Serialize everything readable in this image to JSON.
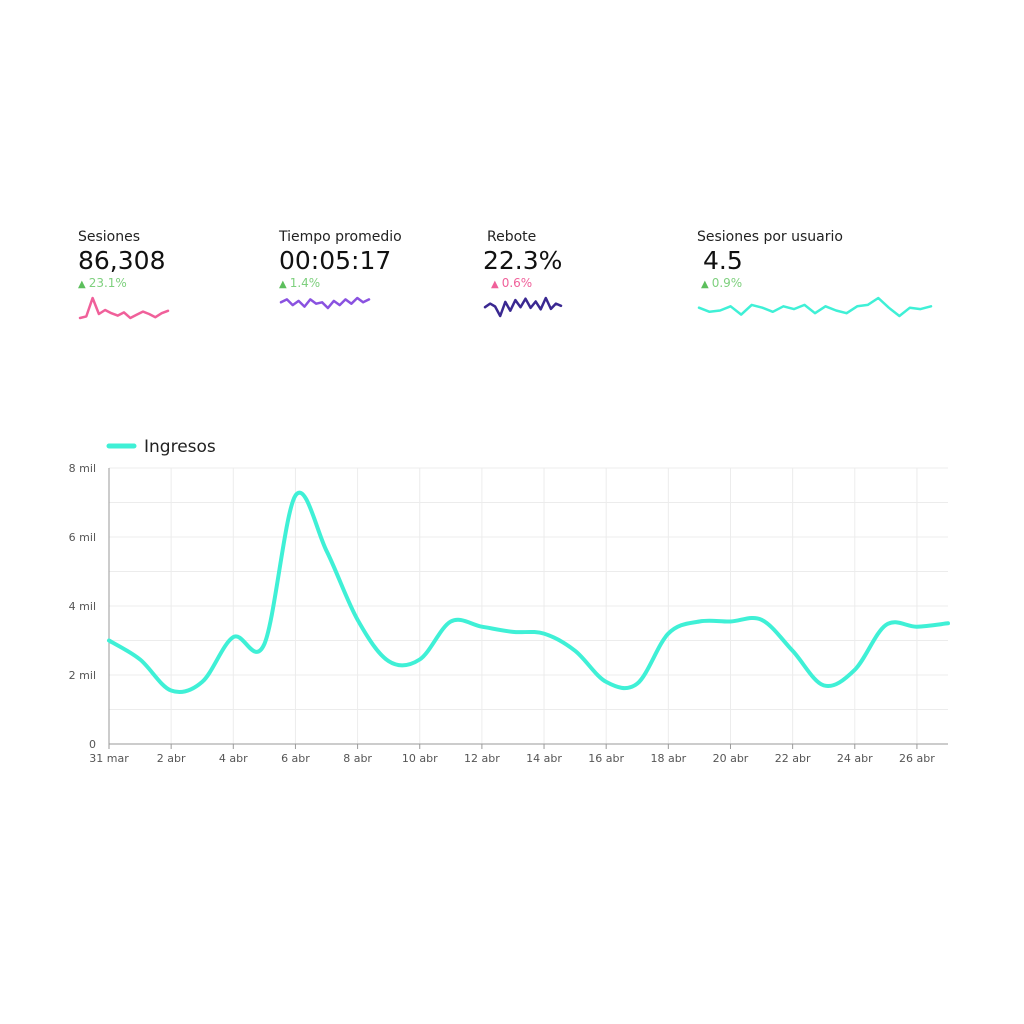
{
  "kpis": [
    {
      "label": "Sesiones",
      "value": "86,308",
      "delta": "23.1%",
      "delta_color": "#7ed07e",
      "arrow_color": "#5cbf5c",
      "line_color": "#f0609a",
      "spark": [
        3,
        3.4,
        8,
        4,
        5,
        4.2,
        3.6,
        4.4,
        3,
        3.8,
        4.6,
        4,
        3.2,
        4.2,
        4.8
      ]
    },
    {
      "label": "Tiempo promedio",
      "value": "00:05:17",
      "delta": "1.4%",
      "delta_color": "#7ed07e",
      "arrow_color": "#5cbf5c",
      "line_color": "#8a52e0",
      "spark": [
        5,
        5.2,
        4.8,
        5.1,
        4.7,
        5.2,
        4.9,
        5.0,
        4.6,
        5.1,
        4.8,
        5.2,
        4.9,
        5.3,
        5.0,
        5.2
      ]
    },
    {
      "label": "Rebote",
      "value": "22.3%",
      "delta": "0.6%",
      "delta_color": "#f0609a",
      "arrow_color": "#f0609a",
      "line_color": "#3a2891",
      "spark": [
        4,
        5,
        4.2,
        1.5,
        5.5,
        3,
        6,
        4,
        6.4,
        3.8,
        5.6,
        3.4,
        6.6,
        3.5,
        5,
        4.4
      ]
    },
    {
      "label": "Sesiones por usuario",
      "value": "4.5",
      "delta": "0.9%",
      "delta_color": "#7ed07e",
      "arrow_color": "#5cbf5c",
      "line_color": "#3ff0d6",
      "spark": [
        5,
        4.4,
        4.6,
        5.2,
        4.0,
        5.4,
        5.0,
        4.4,
        5.2,
        4.8,
        5.4,
        4.2,
        5.2,
        4.6,
        4.2,
        5.2,
        5.4,
        6.4,
        5.0,
        3.8,
        5.0,
        4.8,
        5.2
      ]
    }
  ],
  "chart_data": {
    "type": "line",
    "legend": "top-left",
    "grid": true,
    "line_color": "#3ff0d6",
    "categories": [
      "31 mar",
      "1 abr",
      "2 abr",
      "3 abr",
      "4 abr",
      "5 abr",
      "6 abr",
      "7 abr",
      "8 abr",
      "9 abr",
      "10 abr",
      "11 abr",
      "12 abr",
      "13 abr",
      "14 abr",
      "15 abr",
      "16 abr",
      "17 abr",
      "18 abr",
      "19 abr",
      "20 abr",
      "21 abr",
      "22 abr",
      "23 abr",
      "24 abr",
      "25 abr",
      "26 abr",
      "27 abr"
    ],
    "x_ticks": [
      "31 mar",
      "2 abr",
      "4 abr",
      "6 abr",
      "8 abr",
      "10 abr",
      "12 abr",
      "14 abr",
      "16 abr",
      "18 abr",
      "20 abr",
      "22 abr",
      "24 abr",
      "26 abr"
    ],
    "series": [
      {
        "name": "Ingresos",
        "values": [
          3000,
          2450,
          1550,
          1800,
          3100,
          2900,
          7200,
          5600,
          3600,
          2400,
          2450,
          3550,
          3400,
          3250,
          3200,
          2700,
          1800,
          1750,
          3200,
          3550,
          3550,
          3600,
          2700,
          1700,
          2150,
          3450,
          3400,
          3500
        ]
      }
    ],
    "ylim": [
      0,
      8000
    ],
    "y_ticks": [
      "0",
      "2 mil",
      "4 mil",
      "6 mil",
      "8 mil"
    ]
  }
}
